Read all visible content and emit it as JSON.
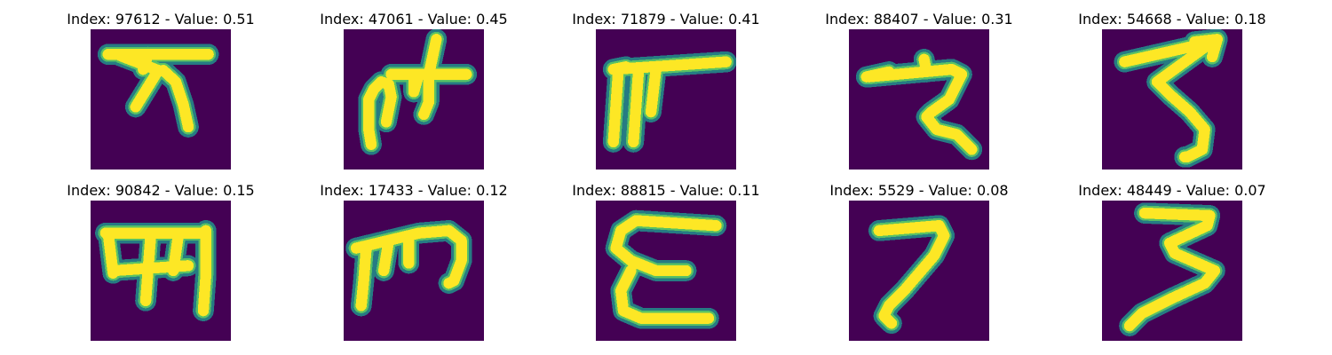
{
  "figure": {
    "colors": {
      "background": "#440154",
      "stroke_edge": "#21918c",
      "stroke_core": "#fde725"
    }
  },
  "chart_data": {
    "type": "image-grid",
    "rows": 2,
    "cols": 5,
    "panels": [
      {
        "title": "Index: 97612 - Value: 0.51",
        "index": 97612,
        "value": 0.51,
        "glyph": "glyph-1"
      },
      {
        "title": "Index: 47061 - Value: 0.45",
        "index": 47061,
        "value": 0.45,
        "glyph": "glyph-2"
      },
      {
        "title": "Index: 71879 - Value: 0.41",
        "index": 71879,
        "value": 0.41,
        "glyph": "glyph-3"
      },
      {
        "title": "Index: 88407 - Value: 0.31",
        "index": 88407,
        "value": 0.31,
        "glyph": "glyph-4"
      },
      {
        "title": "Index: 54668 - Value: 0.18",
        "index": 54668,
        "value": 0.18,
        "glyph": "glyph-5"
      },
      {
        "title": "Index: 90842 - Value: 0.15",
        "index": 90842,
        "value": 0.15,
        "glyph": "glyph-6"
      },
      {
        "title": "Index: 17433 - Value: 0.12",
        "index": 17433,
        "value": 0.12,
        "glyph": "glyph-7"
      },
      {
        "title": "Index: 88815 - Value: 0.11",
        "index": 88815,
        "value": 0.11,
        "glyph": "glyph-8"
      },
      {
        "title": "Index: 5529 - Value: 0.08",
        "index": 5529,
        "value": 0.08,
        "glyph": "glyph-9"
      },
      {
        "title": "Index: 48449 - Value: 0.07",
        "index": 48449,
        "value": 0.07,
        "glyph": "glyph-10"
      }
    ]
  }
}
